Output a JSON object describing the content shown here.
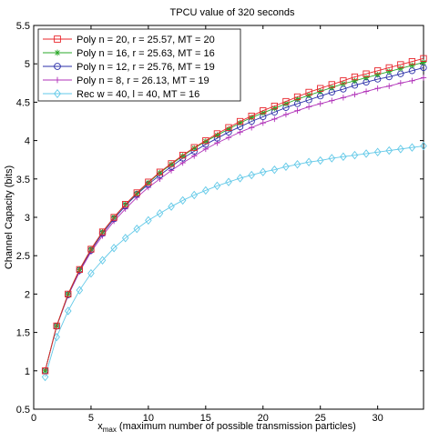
{
  "chart_data": {
    "type": "line",
    "title": "TPCU value of 320 seconds",
    "xlabel_main": "x",
    "xlabel_sub": "max",
    "xlabel_rest": " (maximum number of possible transmission particles)",
    "ylabel": "Channel Capacity (bits)",
    "xlim": [
      0,
      34
    ],
    "ylim": [
      0.5,
      5.5
    ],
    "xticks": [
      0,
      5,
      10,
      15,
      20,
      25,
      30
    ],
    "xtick_labels": [
      "0",
      "5",
      "10",
      "15",
      "20",
      "25",
      "30"
    ],
    "yticks": [
      0.5,
      1,
      1.5,
      2,
      2.5,
      3,
      3.5,
      4,
      4.5,
      5,
      5.5
    ],
    "ytick_labels": [
      "0.5",
      "1",
      "1.5",
      "2",
      "2.5",
      "3",
      "3.5",
      "4",
      "4.5",
      "5",
      "5.5"
    ],
    "grid": false,
    "legend_placement": "top-left",
    "x": [
      1,
      2,
      3,
      4,
      5,
      6,
      7,
      8,
      9,
      10,
      11,
      12,
      13,
      14,
      15,
      16,
      17,
      18,
      19,
      20,
      21,
      22,
      23,
      24,
      25,
      26,
      27,
      28,
      29,
      30,
      31,
      32,
      33,
      34
    ],
    "series": [
      {
        "name": "Poly n = 20, r = 25.57, MT = 20",
        "color": "#e8242a",
        "marker": "square",
        "values": [
          1.0,
          1.585,
          2.0,
          2.32,
          2.585,
          2.81,
          3.0,
          3.17,
          3.32,
          3.46,
          3.59,
          3.7,
          3.81,
          3.91,
          4.0,
          4.09,
          4.17,
          4.25,
          4.32,
          4.39,
          4.45,
          4.51,
          4.57,
          4.63,
          4.68,
          4.73,
          4.78,
          4.83,
          4.87,
          4.91,
          4.95,
          4.99,
          5.03,
          5.07
        ]
      },
      {
        "name": "Poly n = 16, r = 25.63, MT = 16",
        "color": "#2aa828",
        "marker": "asterisk",
        "values": [
          1.0,
          1.585,
          2.0,
          2.32,
          2.585,
          2.81,
          3.0,
          3.17,
          3.31,
          3.45,
          3.58,
          3.69,
          3.8,
          3.9,
          3.99,
          4.07,
          4.15,
          4.23,
          4.3,
          4.36,
          4.42,
          4.48,
          4.54,
          4.59,
          4.64,
          4.69,
          4.74,
          4.78,
          4.82,
          4.86,
          4.9,
          4.94,
          4.98,
          5.02
        ]
      },
      {
        "name": "Poly n = 12, r = 25.76, MT = 19",
        "color": "#2b2fa8",
        "marker": "circle",
        "values": [
          1.0,
          1.58,
          1.99,
          2.31,
          2.57,
          2.79,
          2.98,
          3.15,
          3.3,
          3.43,
          3.55,
          3.66,
          3.77,
          3.86,
          3.95,
          4.03,
          4.11,
          4.18,
          4.25,
          4.31,
          4.37,
          4.43,
          4.48,
          4.53,
          4.58,
          4.63,
          4.67,
          4.72,
          4.76,
          4.8,
          4.83,
          4.87,
          4.91,
          4.95
        ]
      },
      {
        "name": "Poly n = 8,  r = 26.13, MT = 19",
        "color": "#b030b8",
        "marker": "plus",
        "values": [
          1.0,
          1.58,
          1.98,
          2.29,
          2.55,
          2.76,
          2.95,
          3.11,
          3.26,
          3.39,
          3.5,
          3.61,
          3.71,
          3.8,
          3.89,
          3.97,
          4.04,
          4.11,
          4.17,
          4.23,
          4.28,
          4.34,
          4.39,
          4.44,
          4.48,
          4.52,
          4.56,
          4.6,
          4.64,
          4.68,
          4.71,
          4.75,
          4.78,
          4.82
        ]
      },
      {
        "name": "Rec w = 40, l = 40, MT = 16",
        "color": "#62c9e8",
        "marker": "diamond",
        "values": [
          0.92,
          1.44,
          1.78,
          2.05,
          2.27,
          2.44,
          2.6,
          2.73,
          2.85,
          2.96,
          3.05,
          3.14,
          3.22,
          3.29,
          3.35,
          3.41,
          3.46,
          3.51,
          3.55,
          3.59,
          3.62,
          3.66,
          3.69,
          3.72,
          3.74,
          3.77,
          3.79,
          3.81,
          3.83,
          3.85,
          3.87,
          3.89,
          3.91,
          3.93
        ]
      }
    ]
  }
}
